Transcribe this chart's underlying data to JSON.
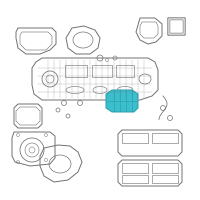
{
  "bg_color": "#ffffff",
  "line_color": "#707070",
  "highlight_color": "#3bbfcc",
  "highlight_edge": "#2a9aaa",
  "fig_size": [
    2.0,
    2.0
  ],
  "dpi": 100
}
